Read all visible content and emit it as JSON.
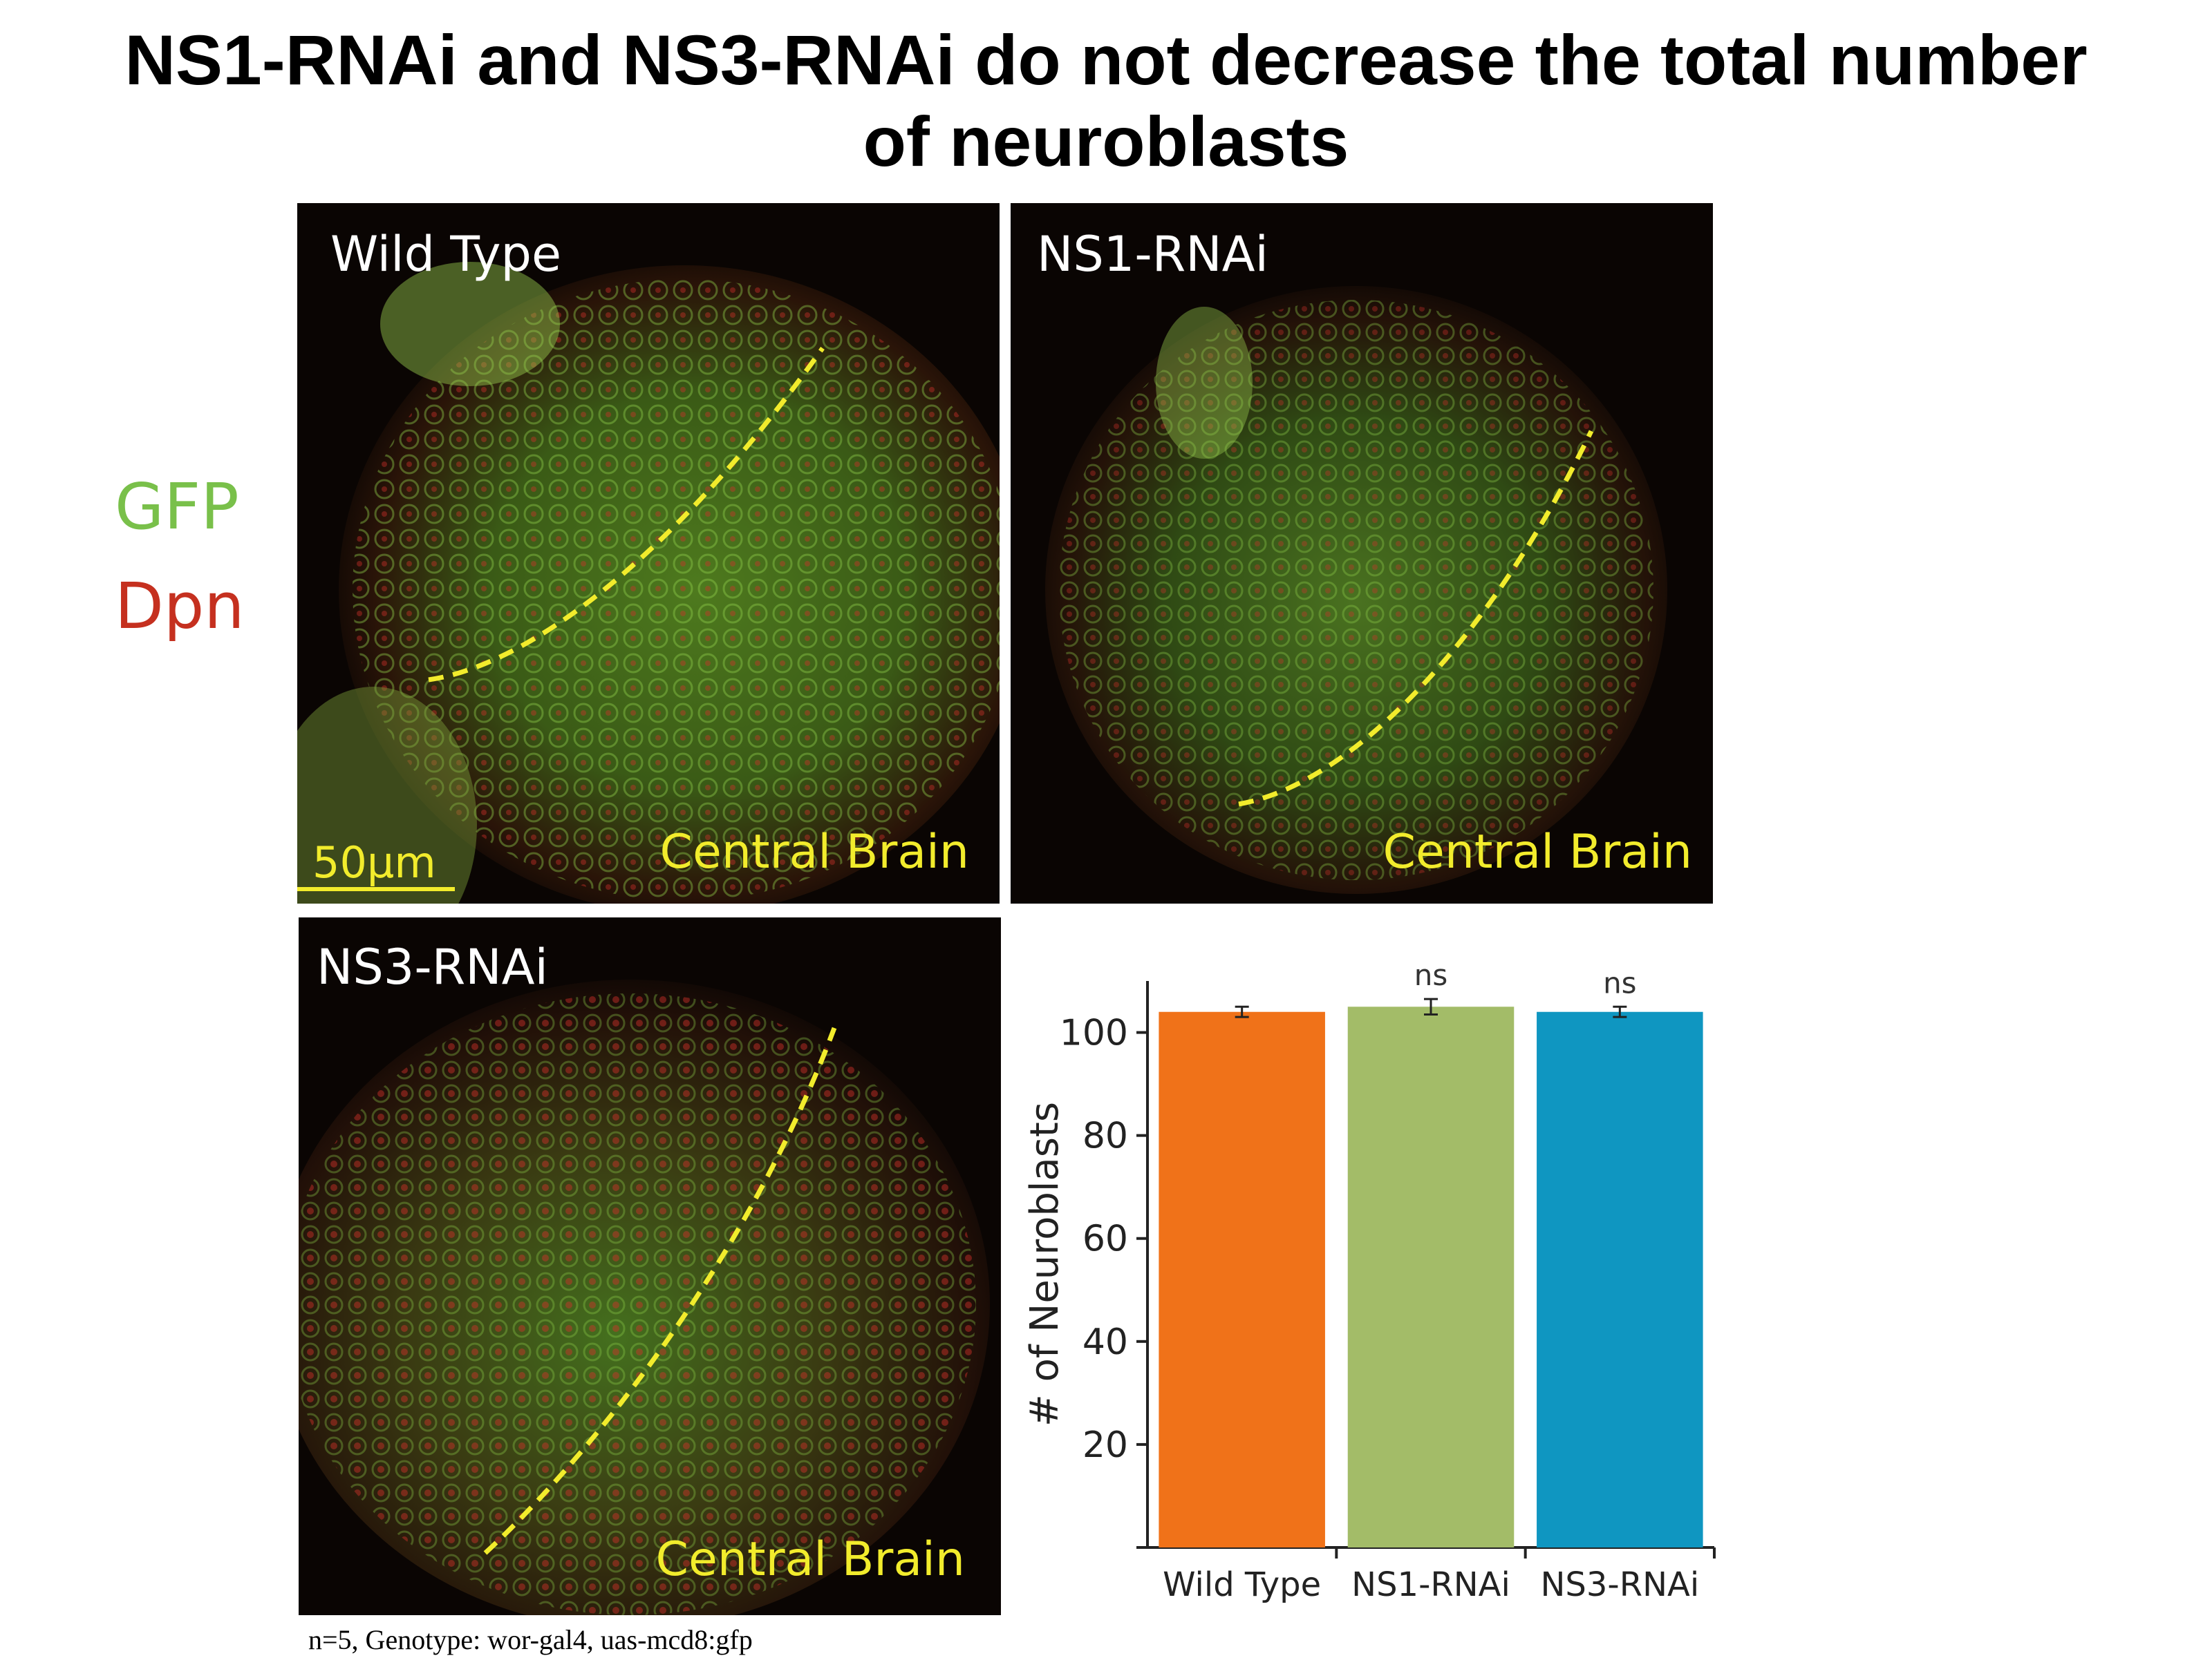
{
  "title": {
    "line1": "NS1-RNAi and NS3-RNAi do not decrease the total number",
    "line2": "of neuroblasts"
  },
  "legend": {
    "gfp": "GFP",
    "dpn": "Dpn",
    "gfp_color": "#79c04a",
    "dpn_color": "#c5301f"
  },
  "panels": [
    {
      "id": "wt",
      "label": "Wild Type",
      "region": "Central Brain",
      "scale": "50µm"
    },
    {
      "id": "ns1",
      "label": "NS1-RNAi",
      "region": "Central Brain"
    },
    {
      "id": "ns3",
      "label": "NS3-RNAi",
      "region": "Central Brain"
    }
  ],
  "chart_data": {
    "type": "bar",
    "categories": [
      "Wild Type",
      "NS1-RNAi",
      "NS3-RNAi"
    ],
    "values": [
      104,
      105,
      104
    ],
    "errors": [
      1,
      1.5,
      1
    ],
    "annotations": [
      "",
      "ns",
      "ns"
    ],
    "colors": [
      "#f07219",
      "#a3bc68",
      "#0f96c1"
    ],
    "ylabel": "# of Neuroblasts",
    "ylim": [
      0,
      110
    ],
    "yticks": [
      20,
      40,
      60,
      80,
      100
    ]
  },
  "footnote": "n=5, Genotype: wor-gal4, uas-mcd8:gfp"
}
